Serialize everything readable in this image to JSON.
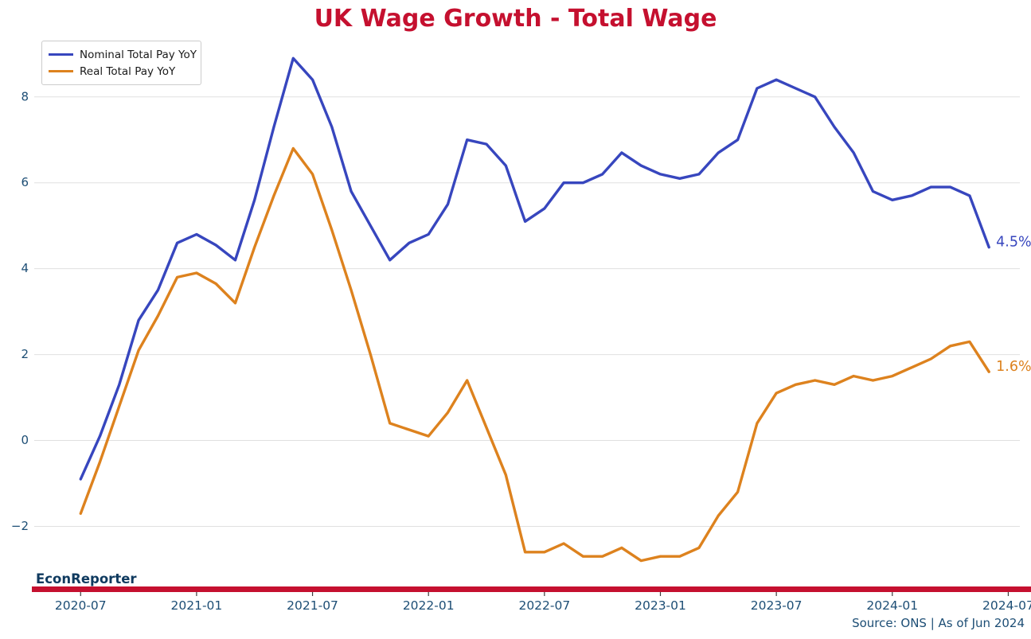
{
  "title": "UK Wage Growth - Total Wage",
  "branding": {
    "name": "EconReporter"
  },
  "source_note": "Source: ONS | As of Jun 2024",
  "annotations": {
    "nominal_end": "4.5%",
    "real_end": "1.6%"
  },
  "legend": [
    {
      "label": "Nominal Total Pay YoY",
      "color": "#3746be"
    },
    {
      "label": "Real Total Pay YoY",
      "color": "#dd821e"
    }
  ],
  "colors": {
    "title": "#c5102f",
    "brand_text": "#0f3a5f",
    "brand_bar": "#c5102f",
    "axis_text": "#1d4e75",
    "grid": "#e0e0e0",
    "tick_mark": "#3c3c3c",
    "background": "#ffffff"
  },
  "chart_data": {
    "type": "line",
    "title": "UK Wage Growth - Total Wage",
    "xlabel": "",
    "ylabel": "",
    "grid": "horizontal-only",
    "legend_position": "upper-left",
    "xlim_index": [
      -2.4,
      48.6
    ],
    "ylim": [
      -3.4,
      9.2
    ],
    "y_ticks": [
      -2,
      0,
      2,
      4,
      6,
      8
    ],
    "x_tick_labels": [
      "2020-07",
      "2021-01",
      "2021-07",
      "2022-01",
      "2022-07",
      "2023-01",
      "2023-07",
      "2024-01",
      "2024-07"
    ],
    "x_tick_positions": [
      0,
      6,
      12,
      18,
      24,
      30,
      36,
      42,
      48
    ],
    "categories": [
      "2020-07",
      "2020-08",
      "2020-09",
      "2020-10",
      "2020-11",
      "2020-12",
      "2021-01",
      "2021-02",
      "2021-03",
      "2021-04",
      "2021-05",
      "2021-06",
      "2021-07",
      "2021-08",
      "2021-09",
      "2021-10",
      "2021-11",
      "2021-12",
      "2022-01",
      "2022-02",
      "2022-03",
      "2022-04",
      "2022-05",
      "2022-06",
      "2022-07",
      "2022-08",
      "2022-09",
      "2022-10",
      "2022-11",
      "2022-12",
      "2023-01",
      "2023-02",
      "2023-03",
      "2023-04",
      "2023-05",
      "2023-06",
      "2023-07",
      "2023-08",
      "2023-09",
      "2023-10",
      "2023-11",
      "2023-12",
      "2024-01",
      "2024-02",
      "2024-03",
      "2024-04",
      "2024-05",
      "2024-06"
    ],
    "series": [
      {
        "name": "Nominal Total Pay YoY",
        "color": "#3746be",
        "end_label": "4.5%",
        "values": [
          -0.9,
          0.1,
          1.3,
          2.8,
          3.5,
          4.6,
          4.8,
          4.55,
          4.2,
          5.6,
          7.3,
          8.9,
          8.4,
          7.3,
          5.8,
          5.0,
          4.2,
          4.6,
          4.8,
          5.5,
          7.0,
          6.9,
          6.4,
          5.1,
          5.4,
          6.0,
          6.0,
          6.2,
          6.7,
          6.4,
          6.2,
          6.1,
          6.2,
          6.7,
          7.0,
          8.2,
          8.4,
          8.2,
          8.0,
          7.3,
          6.7,
          5.8,
          5.6,
          5.7,
          5.9,
          5.9,
          5.7,
          4.5
        ]
      },
      {
        "name": "Real Total Pay YoY",
        "color": "#dd821e",
        "end_label": "1.6%",
        "values": [
          -1.7,
          -0.5,
          0.8,
          2.1,
          2.9,
          3.8,
          3.9,
          3.65,
          3.2,
          4.5,
          5.7,
          6.8,
          6.2,
          4.9,
          3.5,
          2.0,
          0.4,
          0.25,
          0.1,
          0.65,
          1.4,
          0.3,
          -0.8,
          -2.6,
          -2.6,
          -2.4,
          -2.7,
          -2.7,
          -2.5,
          -2.8,
          -2.7,
          -2.7,
          -2.5,
          -1.75,
          -1.2,
          0.4,
          1.1,
          1.3,
          1.4,
          1.3,
          1.5,
          1.4,
          1.5,
          1.7,
          1.9,
          2.2,
          2.3,
          1.6
        ]
      }
    ]
  }
}
